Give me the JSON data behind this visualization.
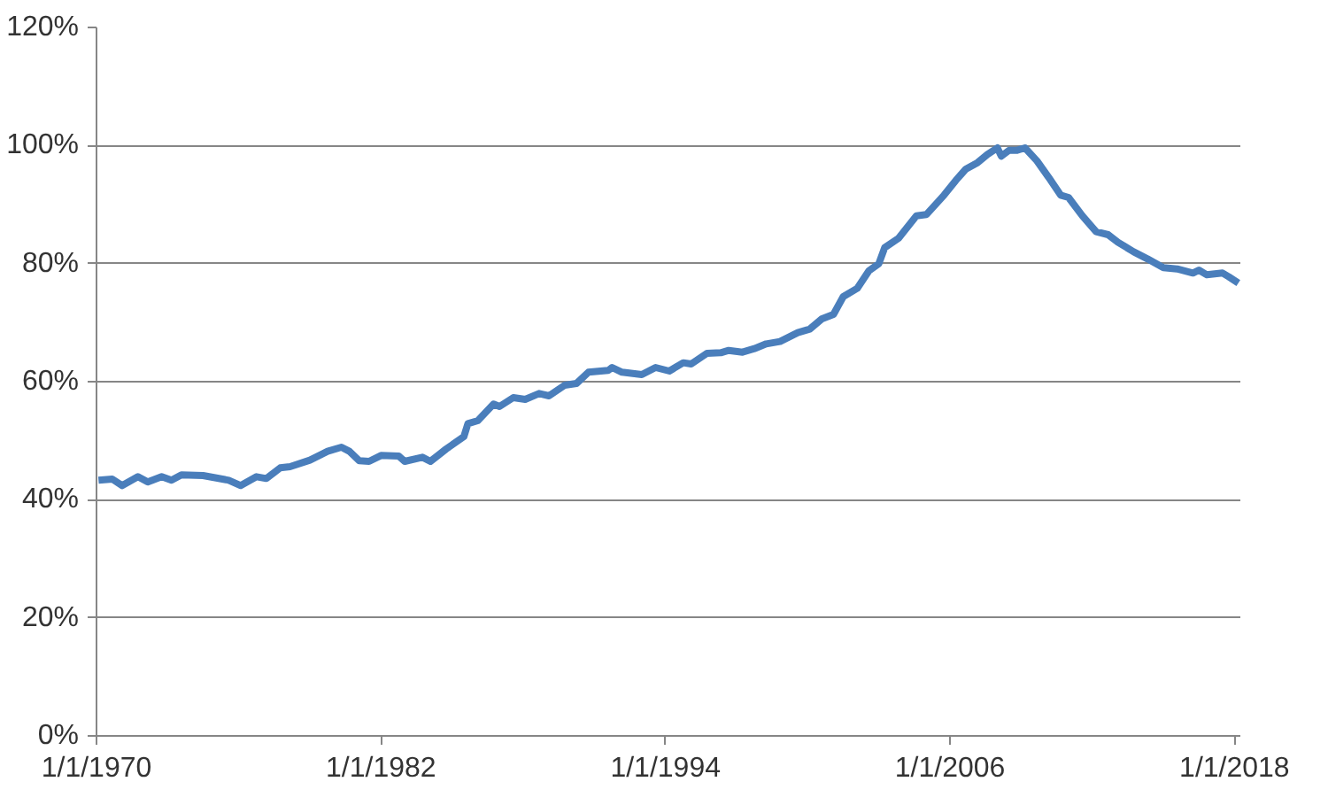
{
  "chart_data": {
    "type": "line",
    "color": "#4a7ebb",
    "grid": "y",
    "marker": "none",
    "line_style": "solid",
    "xlim": [
      "1970-01-01",
      "2018-04-01"
    ],
    "ylim": [
      0,
      120
    ],
    "xticks": [
      {
        "value": "1970-01-01",
        "label": "1/1/1970"
      },
      {
        "value": "1982-01-01",
        "label": "1/1/1982"
      },
      {
        "value": "1994-01-01",
        "label": "1/1/1994"
      },
      {
        "value": "2006-01-01",
        "label": "1/1/2006"
      },
      {
        "value": "2018-01-01",
        "label": "1/1/2018"
      }
    ],
    "yticks": [
      {
        "value": 0,
        "label": "0%"
      },
      {
        "value": 20,
        "label": "20%"
      },
      {
        "value": 40,
        "label": "40%"
      },
      {
        "value": 60,
        "label": "60%"
      },
      {
        "value": 80,
        "label": "80%"
      },
      {
        "value": 100,
        "label": "100%"
      },
      {
        "value": 120,
        "label": "120%"
      }
    ],
    "x": [
      "1970-02",
      "1970-09",
      "1971-02",
      "1971-10",
      "1972-03",
      "1972-10",
      "1973-03",
      "1973-08",
      "1974-07",
      "1975-08",
      "1976-02",
      "1976-10",
      "1977-03",
      "1977-10",
      "1978-03",
      "1979-01",
      "1979-10",
      "1980-05",
      "1980-09",
      "1981-02",
      "1981-07",
      "1982-01",
      "1982-10",
      "1983-01",
      "1983-10",
      "1984-02",
      "1984-10",
      "1985-07",
      "1985-09",
      "1986-02",
      "1986-10",
      "1987-01",
      "1987-08",
      "1988-02",
      "1988-09",
      "1989-02",
      "1989-10",
      "1990-04",
      "1990-10",
      "1991-08",
      "1991-10",
      "1992-03",
      "1993-01",
      "1993-08",
      "1994-03",
      "1994-10",
      "1995-02",
      "1995-10",
      "1996-05",
      "1996-09",
      "1997-04",
      "1997-10",
      "1998-04",
      "1998-11",
      "1999-08",
      "2000-02",
      "2000-08",
      "2001-02",
      "2001-07",
      "2002-02",
      "2002-08",
      "2003-01",
      "2003-04",
      "2003-11",
      "2004-08",
      "2005-01",
      "2005-10",
      "2006-04",
      "2006-09",
      "2007-03",
      "2007-08",
      "2008-01",
      "2008-03",
      "2008-07",
      "2008-11",
      "2009-03",
      "2009-09",
      "2010-03",
      "2010-09",
      "2011-01",
      "2011-08",
      "2012-03",
      "2012-09",
      "2013-02",
      "2013-10",
      "2014-05",
      "2015-01",
      "2015-08",
      "2016-04",
      "2016-07",
      "2016-11",
      "2017-07",
      "2017-10",
      "2018-03"
    ],
    "values": [
      43.3,
      43.5,
      42.4,
      43.9,
      43.0,
      43.9,
      43.3,
      44.2,
      44.1,
      43.3,
      42.4,
      43.9,
      43.6,
      45.4,
      45.6,
      46.7,
      48.2,
      48.9,
      48.2,
      46.6,
      46.5,
      47.5,
      47.4,
      46.5,
      47.2,
      46.5,
      48.6,
      50.7,
      52.9,
      53.4,
      56.2,
      55.8,
      57.3,
      57.0,
      58.0,
      57.6,
      59.4,
      59.7,
      61.6,
      61.9,
      62.4,
      61.6,
      61.2,
      62.4,
      61.8,
      63.2,
      63.0,
      64.8,
      64.9,
      65.3,
      65.0,
      65.6,
      66.4,
      66.8,
      68.3,
      68.9,
      70.6,
      71.4,
      74.4,
      75.8,
      78.8,
      80.0,
      82.7,
      84.3,
      88.1,
      88.3,
      91.6,
      94.1,
      96.0,
      97.1,
      98.5,
      99.6,
      98.2,
      99.2,
      99.2,
      99.6,
      97.4,
      94.6,
      91.6,
      91.2,
      88.1,
      85.4,
      84.9,
      83.6,
      82.0,
      80.8,
      79.3,
      79.1,
      78.4,
      78.9,
      78.1,
      78.4,
      77.8,
      76.7
    ]
  }
}
